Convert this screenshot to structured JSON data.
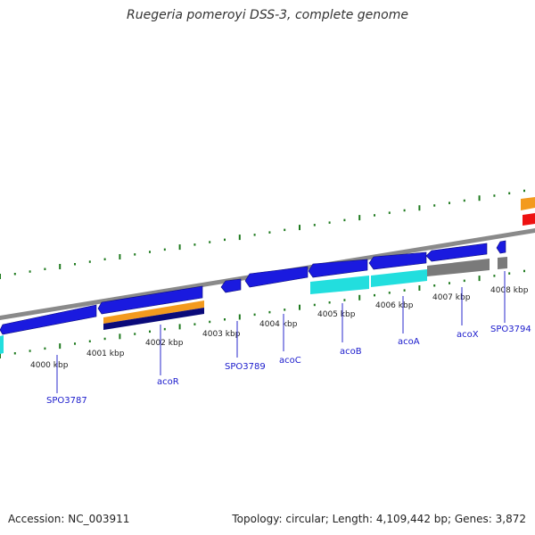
{
  "title": "Ruegeria pomeroyi DSS-3, complete genome",
  "footer": {
    "accession": "Accession: NC_003911",
    "summary": "Topology: circular; Length: 4,109,442 bp; Genes: 3,872"
  },
  "colors": {
    "cds": "#1a1adf",
    "cds_dark": "#0a0a7a",
    "cyan": "#22dede",
    "gray": "#7a7a7a",
    "orange": "#f39a1e",
    "red": "#ee1111",
    "tick": "#1e7a1e"
  },
  "scale": {
    "ticks_kbp": [
      "4000 kbp",
      "4001 kbp",
      "4002 kbp",
      "4003 kbp",
      "4004 kbp",
      "4005 kbp",
      "4006 kbp",
      "4007 kbp",
      "4008 kbp"
    ]
  },
  "genes": [
    "SPO3787",
    "acoR",
    "SPO3789",
    "acoC",
    "acoB",
    "acoA",
    "acoX",
    "SPO3794"
  ]
}
